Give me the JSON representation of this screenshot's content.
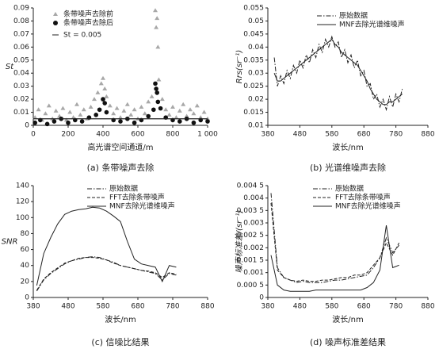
{
  "chart_data": [
    {
      "type": "scatter",
      "ylabel": "St",
      "xlabel": "高光谱空间通道/m",
      "caption": "(a)  条带噪声去除",
      "xlim": [
        0,
        1000
      ],
      "xticks": [
        0,
        200,
        400,
        600,
        800,
        {
          "value": 1000,
          "label": "1 000"
        }
      ],
      "ylim": [
        0,
        0.09
      ],
      "yticks": [
        0,
        0.01,
        0.02,
        0.03,
        0.04,
        0.05,
        0.06,
        0.07,
        0.08,
        0.09
      ],
      "threshold": 0.005,
      "threshold_label": "St = 0.005",
      "threshold_color": "#222",
      "series": [
        {
          "name": "条带噪声去除前",
          "color": "#a8a8a8",
          "marker": "triangle",
          "x": [
            10,
            30,
            50,
            70,
            90,
            110,
            130,
            150,
            170,
            190,
            210,
            230,
            250,
            270,
            290,
            310,
            330,
            350,
            370,
            390,
            400,
            410,
            420,
            440,
            460,
            480,
            500,
            520,
            540,
            560,
            580,
            600,
            620,
            640,
            660,
            680,
            700,
            705,
            710,
            715,
            720,
            740,
            760,
            780,
            800,
            820,
            840,
            860,
            880,
            900,
            920,
            940,
            960,
            980,
            1000
          ],
          "values": [
            0.006,
            0.012,
            0.004,
            0.009,
            0.015,
            0.005,
            0.011,
            0.007,
            0.013,
            0.004,
            0.01,
            0.006,
            0.016,
            0.008,
            0.012,
            0.005,
            0.014,
            0.02,
            0.025,
            0.032,
            0.036,
            0.028,
            0.022,
            0.015,
            0.009,
            0.013,
            0.006,
            0.011,
            0.016,
            0.008,
            0.012,
            0.005,
            0.014,
            0.009,
            0.018,
            0.022,
            0.088,
            0.075,
            0.082,
            0.06,
            0.035,
            0.02,
            0.012,
            0.008,
            0.014,
            0.006,
            0.011,
            0.016,
            0.007,
            0.012,
            0.009,
            0.015,
            0.006,
            0.01,
            0.005
          ]
        },
        {
          "name": "条带噪声去除后",
          "color": "#111",
          "marker": "circle",
          "x": [
            10,
            40,
            80,
            120,
            160,
            200,
            240,
            280,
            320,
            360,
            380,
            400,
            410,
            420,
            460,
            500,
            540,
            580,
            620,
            660,
            690,
            700,
            705,
            710,
            715,
            730,
            760,
            800,
            840,
            880,
            920,
            960,
            1000
          ],
          "values": [
            0.002,
            0.004,
            0.001,
            0.003,
            0.005,
            0.002,
            0.004,
            0.003,
            0.006,
            0.008,
            0.012,
            0.02,
            0.017,
            0.01,
            0.004,
            0.003,
            0.005,
            0.002,
            0.004,
            0.007,
            0.012,
            0.032,
            0.028,
            0.025,
            0.018,
            0.013,
            0.006,
            0.004,
            0.003,
            0.005,
            0.002,
            0.004,
            0.003
          ]
        }
      ]
    },
    {
      "type": "line",
      "ylabel": "Rrs(sr⁻¹)",
      "xlabel": "波长/nm",
      "caption": "(b)  光谱维噪声去除",
      "xlim": [
        380,
        880
      ],
      "xticks": [
        380,
        480,
        580,
        680,
        780,
        880
      ],
      "ylim": [
        0.01,
        0.055
      ],
      "yticks": [
        0.01,
        0.015,
        0.02,
        0.025,
        0.03,
        0.035,
        0.04,
        0.045,
        0.05,
        0.055
      ],
      "x": [
        400,
        410,
        420,
        430,
        440,
        450,
        460,
        470,
        480,
        490,
        500,
        510,
        520,
        530,
        540,
        550,
        560,
        570,
        580,
        590,
        600,
        610,
        620,
        630,
        640,
        650,
        660,
        670,
        680,
        690,
        700,
        710,
        720,
        730,
        740,
        750,
        760,
        770,
        780,
        790,
        800
      ],
      "series": [
        {
          "name": "原始数据",
          "color": "#222",
          "dash": "dashdot",
          "values": [
            0.036,
            0.025,
            0.029,
            0.026,
            0.031,
            0.028,
            0.033,
            0.03,
            0.035,
            0.032,
            0.037,
            0.034,
            0.039,
            0.036,
            0.041,
            0.038,
            0.043,
            0.04,
            0.044,
            0.04,
            0.042,
            0.036,
            0.039,
            0.034,
            0.037,
            0.032,
            0.035,
            0.029,
            0.031,
            0.025,
            0.026,
            0.02,
            0.022,
            0.017,
            0.02,
            0.016,
            0.021,
            0.017,
            0.022,
            0.019,
            0.024
          ]
        },
        {
          "name": "MNF去除光谱维噪声",
          "color": "#222",
          "dash": "solid",
          "values": [
            0.03,
            0.027,
            0.027,
            0.028,
            0.029,
            0.03,
            0.031,
            0.032,
            0.033,
            0.034,
            0.035,
            0.036,
            0.037,
            0.038,
            0.039,
            0.04,
            0.041,
            0.042,
            0.043,
            0.041,
            0.04,
            0.038,
            0.037,
            0.036,
            0.035,
            0.034,
            0.033,
            0.031,
            0.029,
            0.027,
            0.024,
            0.022,
            0.02,
            0.019,
            0.018,
            0.018,
            0.019,
            0.019,
            0.02,
            0.021,
            0.022
          ]
        }
      ]
    },
    {
      "type": "line",
      "ylabel": "SNR",
      "xlabel": "波长/nm",
      "caption": "(c)  信噪比结果",
      "xlim": [
        380,
        880
      ],
      "xticks": [
        380,
        480,
        580,
        680,
        780,
        880
      ],
      "ylim": [
        0,
        140
      ],
      "yticks": [
        0,
        20,
        40,
        60,
        80,
        100,
        120,
        140
      ],
      "x": [
        390,
        410,
        430,
        450,
        470,
        490,
        510,
        530,
        550,
        570,
        590,
        610,
        630,
        650,
        670,
        690,
        710,
        730,
        750,
        770,
        790
      ],
      "series": [
        {
          "name": "原始数据",
          "color": "#222",
          "dash": "dashdot",
          "values": [
            8,
            22,
            30,
            36,
            42,
            46,
            48,
            50,
            51,
            50,
            47,
            44,
            40,
            38,
            36,
            34,
            32,
            30,
            22,
            30,
            28
          ]
        },
        {
          "name": "FFT去除条带噪声",
          "color": "#222",
          "dash": "dashed",
          "values": [
            9,
            23,
            31,
            37,
            43,
            46,
            49,
            50,
            50,
            49,
            47,
            43,
            40,
            38,
            36,
            34,
            33,
            31,
            25,
            31,
            29
          ]
        },
        {
          "name": "MNF去除光谱维噪声",
          "color": "#222",
          "dash": "solid",
          "values": [
            15,
            55,
            75,
            92,
            104,
            108,
            110,
            111,
            113,
            112,
            108,
            102,
            95,
            70,
            48,
            42,
            40,
            38,
            20,
            40,
            38
          ]
        }
      ]
    },
    {
      "type": "line",
      "ylabel": "噪声标准差/(sr⁻¹)",
      "xlabel": "波长/nm",
      "caption": "(d)  噪声标准差结果",
      "xlim": [
        380,
        880
      ],
      "xticks": [
        380,
        480,
        580,
        680,
        780,
        880
      ],
      "ylim": [
        0,
        0.0045
      ],
      "yticks": [
        0,
        {
          "value": 0.0005,
          "label": "0.000 5"
        },
        0.001,
        {
          "value": 0.0015,
          "label": "0.001 5"
        },
        0.002,
        {
          "value": 0.0025,
          "label": "0.002 5"
        },
        0.003,
        {
          "value": 0.0035,
          "label": "0.003 5"
        },
        0.004,
        {
          "value": 0.0045,
          "label": "0.004 5"
        }
      ],
      "x": [
        390,
        410,
        430,
        450,
        470,
        490,
        510,
        530,
        550,
        570,
        590,
        610,
        630,
        650,
        670,
        690,
        710,
        730,
        750,
        770,
        790
      ],
      "series": [
        {
          "name": "原始数据",
          "color": "#222",
          "dash": "dashdot",
          "values": [
            0.0042,
            0.0012,
            0.0008,
            0.0007,
            0.0006,
            0.00065,
            0.0006,
            0.0006,
            0.0006,
            0.00065,
            0.0007,
            0.0007,
            0.00075,
            0.0008,
            0.00085,
            0.0009,
            0.0012,
            0.0016,
            0.0024,
            0.0018,
            0.0021
          ]
        },
        {
          "name": "FFT去除条带噪声",
          "color": "#222",
          "dash": "dashed",
          "values": [
            0.0038,
            0.0011,
            0.0008,
            0.0007,
            0.00065,
            0.0007,
            0.00065,
            0.00065,
            0.0007,
            0.0007,
            0.00075,
            0.0008,
            0.0008,
            0.0009,
            0.0009,
            0.001,
            0.0013,
            0.0016,
            0.0022,
            0.0017,
            0.0022
          ]
        },
        {
          "name": "MNF去除光谱维噪声",
          "color": "#222",
          "dash": "solid",
          "values": [
            0.0017,
            0.0005,
            0.0003,
            0.00025,
            0.00025,
            0.00025,
            0.00025,
            0.0003,
            0.0003,
            0.0003,
            0.0003,
            0.0003,
            0.0003,
            0.0003,
            0.0003,
            0.0004,
            0.0006,
            0.0011,
            0.0029,
            0.0012,
            0.0013
          ]
        }
      ]
    }
  ]
}
